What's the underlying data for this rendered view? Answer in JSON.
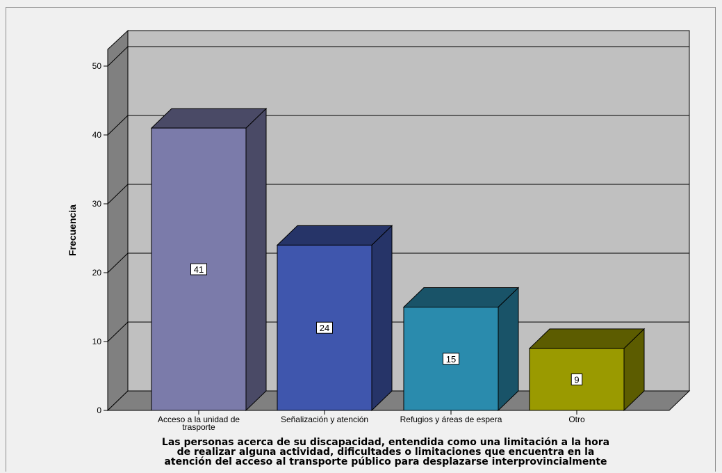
{
  "chart_data": {
    "type": "bar",
    "categories": [
      "Acceso a la unidad de trasporte",
      "Señalización y atención",
      "Refugios y áreas de espera",
      "Otro"
    ],
    "category_lines": [
      [
        "Acceso a la unidad de",
        "trasporte"
      ],
      [
        "Señalización y atención"
      ],
      [
        "Refugios y áreas de espera"
      ],
      [
        "Otro"
      ]
    ],
    "values": [
      41,
      24,
      15,
      9
    ],
    "data_labels": [
      "41",
      "24",
      "15",
      "9"
    ],
    "bar_colors": [
      "#7b7baa",
      "#3f56ad",
      "#2a8bad",
      "#9a9a00"
    ],
    "ylabel": "Frecuencia",
    "xlabel_lines": [
      "Las personas acerca de su discapacidad, entendida como una limitación a la hora",
      "de realizar alguna actividad, dificultades o limitaciones que encuentra en la",
      "atención del acceso al transporte público para desplazarse interprovincialmente"
    ],
    "ylim": [
      0,
      50
    ],
    "yticks": [
      0,
      10,
      20,
      30,
      40,
      50
    ],
    "ytick_labels": [
      "0",
      "10",
      "20",
      "30",
      "40",
      "50"
    ],
    "grid": true,
    "style": "3d-bar"
  }
}
